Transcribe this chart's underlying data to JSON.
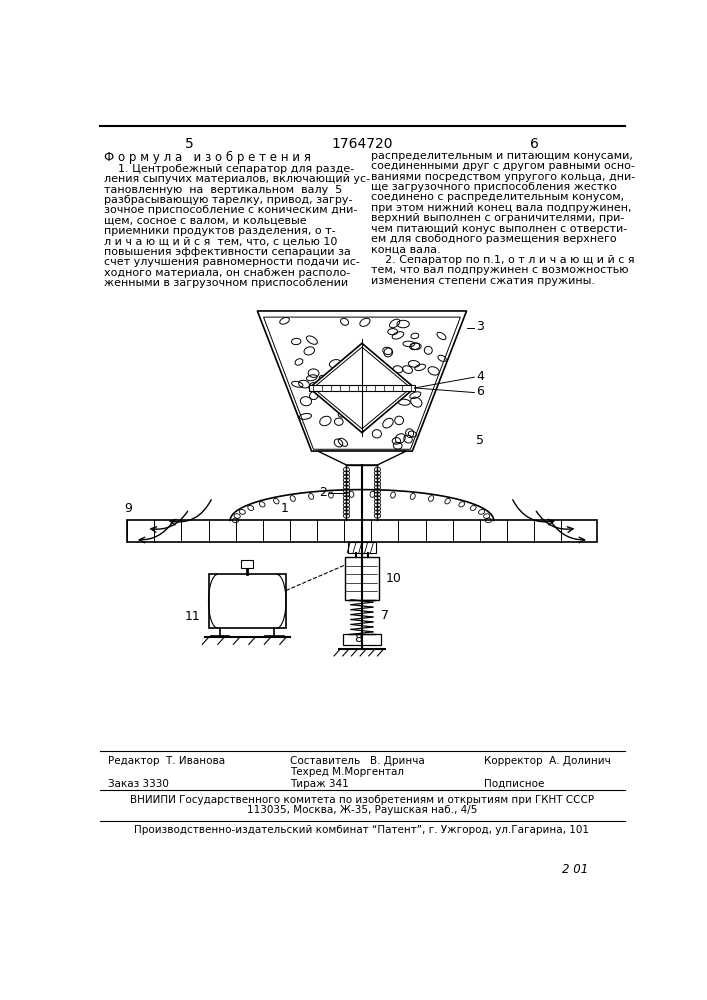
{
  "page_number_left": "5",
  "page_number_center": "1764720",
  "page_number_right": "6",
  "left_col_title": "Ф о р м у л а   и з о б р е т е н и я",
  "left_col_para1": "    1. Центробежный сепаратор для разде-\nления сыпучих материалов, включающий ус-\nтановленную на вертикальном валу  5\nразбрасывающую тарелку, привод, загру-\nзочное приспособление с коническим дни-\nщем, соосное с валом, и кольцевые\nприемники продуктов разделения, о т-\nл и ч а ю щ и й с я  тем, что, с целью 10\nповышения эффективности сепарации за\nсчет улучшения равномерности подачи ис-\nходного материала, он снабжен располо-\nженными в загрузочном приспособлении",
  "right_col_text": "распределительным и питающим конусами,\nсоединенными друг с другом равными осно-\nваниями посредством упругого кольца, дни-\nще загрузочного приспособления жестко\nсоединено с распределительным конусом,\nпри этом нижний конец вала подпружинен,\nверхний выполнен с ограничителями, при-\nчем питающий конус выполнен с отверсти-\nем для свободного размещения верхнего\nконца вала.\n    2. Сепаратор по п.1, о т л и ч а ю щ и й с я\nтем, что вал подпружинен с возможностью\nизменения степени сжатия пружины.",
  "footer_editor": "Редактор  Т. Иванова",
  "footer_compiler": "Составитель   В. Дринча",
  "footer_tech": "Техред М.Моргентал",
  "footer_corrector": "Корректор  А. Долинич",
  "footer_order": "Заказ 3330",
  "footer_print": "Тираж 341",
  "footer_subscription": "Подписное",
  "footer_org1": "ВНИИПИ Государственного комитета по изобретениям и открытиям при ГКНТ СССР",
  "footer_org2": "113035, Москва, Ж-35, Раушская наб., 4/5",
  "footer_publisher": "Производственно-издательский комбинат “Патент”, г. Ужгород, ул.Гагарина, 101",
  "page_stamp": "2 01",
  "bg_color": "#ffffff",
  "text_color": "#000000"
}
